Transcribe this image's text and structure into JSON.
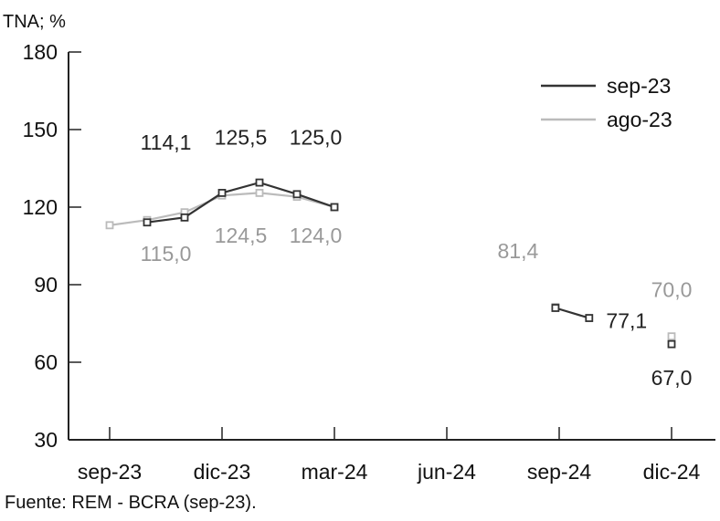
{
  "chart_data": {
    "type": "line",
    "unit_label": "TNA; %",
    "source": "Fuente: REM - BCRA (sep-23).",
    "ylim": [
      30,
      180
    ],
    "yticks": [
      30,
      60,
      90,
      120,
      150,
      180
    ],
    "xlim": [
      0,
      15.5
    ],
    "xtick_labels": [
      {
        "x": 0,
        "label": "sep-23"
      },
      {
        "x": 3,
        "label": "dic-23"
      },
      {
        "x": 6,
        "label": "mar-24"
      },
      {
        "x": 9,
        "label": "jun-24"
      },
      {
        "x": 12,
        "label": "sep-24"
      },
      {
        "x": 15,
        "label": "dic-24"
      }
    ],
    "legend_position": "top-right",
    "grid": false,
    "series": [
      {
        "name": "sep-23",
        "color": "#333333",
        "points": [
          [
            1,
            114.1
          ],
          [
            2,
            116.0
          ],
          [
            3,
            125.5
          ],
          [
            4,
            129.5
          ],
          [
            5,
            125.0
          ],
          [
            6,
            120.0
          ],
          [
            11.9,
            81.0
          ],
          [
            12.8,
            77.1
          ],
          [
            15,
            67.0
          ]
        ]
      },
      {
        "name": "ago-23",
        "color": "#bbbbbb",
        "points": [
          [
            0,
            113.0
          ],
          [
            1,
            115.0
          ],
          [
            2,
            118.0
          ],
          [
            3,
            124.5
          ],
          [
            4,
            125.5
          ],
          [
            5,
            124.0
          ],
          [
            6,
            120.0
          ],
          [
            11.9,
            81.4
          ],
          [
            15,
            70.0
          ]
        ]
      }
    ],
    "annotations": [
      {
        "text": "114,1",
        "x": 1.5,
        "y": 145,
        "series": "sep-23"
      },
      {
        "text": "125,5",
        "x": 3.5,
        "y": 147,
        "series": "sep-23"
      },
      {
        "text": "125,0",
        "x": 5.5,
        "y": 147,
        "series": "sep-23"
      },
      {
        "text": "124,5",
        "x": 3.5,
        "y": 109,
        "series": "ago-23"
      },
      {
        "text": "124,0",
        "x": 5.5,
        "y": 109,
        "series": "ago-23"
      },
      {
        "text": "115,0",
        "x": 1.5,
        "y": 102,
        "series": "ago-23"
      },
      {
        "text": "81,4",
        "x": 10.9,
        "y": 103,
        "series": "ago-23"
      },
      {
        "text": "77,1",
        "x": 13.8,
        "y": 76,
        "series": "sep-23"
      },
      {
        "text": "70,0",
        "x": 15.0,
        "y": 88,
        "series": "ago-23"
      },
      {
        "text": "67,0",
        "x": 15.0,
        "y": 54,
        "series": "sep-23"
      }
    ]
  }
}
